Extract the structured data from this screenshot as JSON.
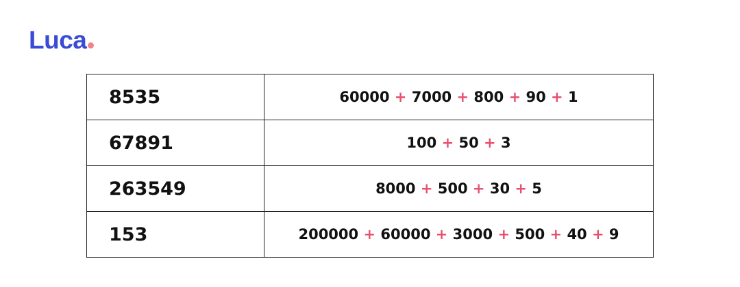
{
  "logo": {
    "text": "Luca",
    "brand_color": "#3a4bd6",
    "dot_color": "#f4828a"
  },
  "accent_color": "#e8506e",
  "rows": [
    {
      "number": "8535",
      "expansion": [
        "60000",
        "7000",
        "800",
        "90",
        "1"
      ]
    },
    {
      "number": "67891",
      "expansion": [
        "100",
        "50",
        "3"
      ]
    },
    {
      "number": "263549",
      "expansion": [
        "8000",
        "500",
        "30",
        "5"
      ]
    },
    {
      "number": "153",
      "expansion": [
        "200000",
        "60000",
        "3000",
        "500",
        "40",
        "9"
      ]
    }
  ],
  "operator": "+"
}
